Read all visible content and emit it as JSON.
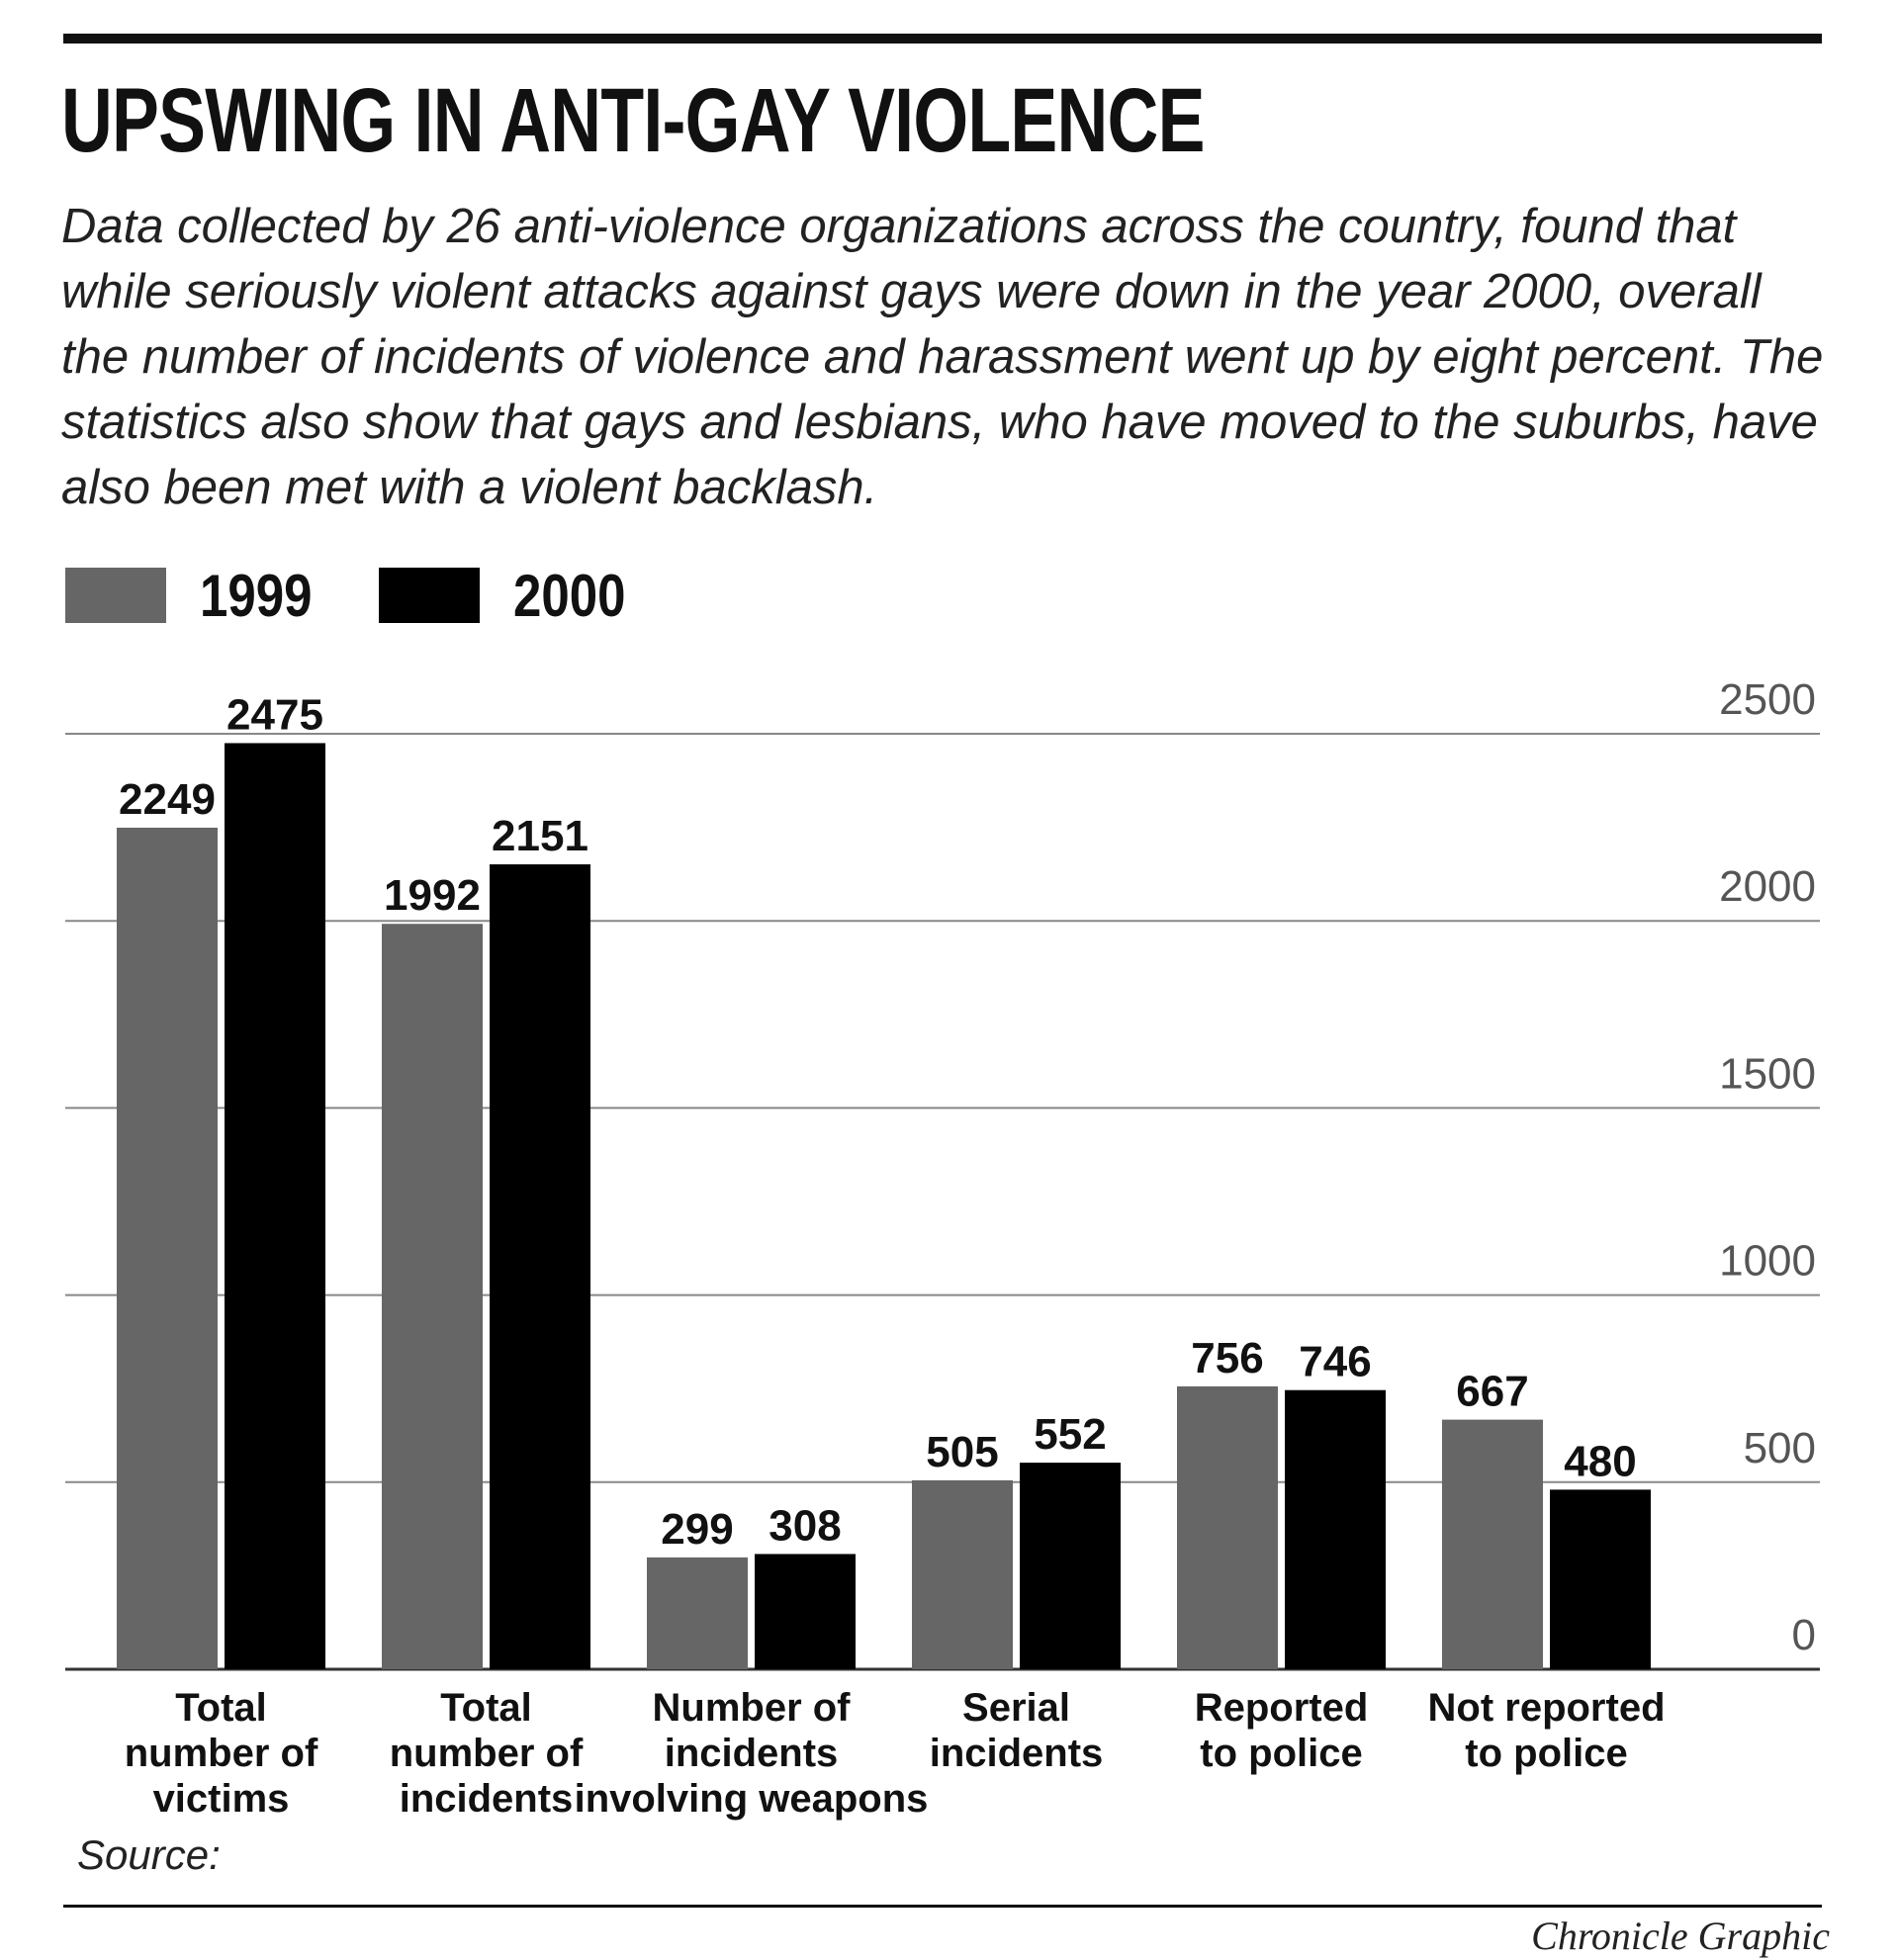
{
  "title": "UPSWING IN ANTI-GAY VIOLENCE",
  "subtitle": "Data collected by 26 anti-violence organizations across the country, found that while seriously violent attacks against gays were down in the year 2000, overall the number of incidents of violence and harassment went up by eight percent. The statistics also show that gays and lesbians, who have moved to the suburbs, have also been met with a violent backlash.",
  "source": "Source:",
  "credit": "Chronicle Graphic",
  "colors": {
    "series_1999": "#666666",
    "series_2000": "#000000",
    "gridline": "#888888",
    "tick": "#555555"
  },
  "chart_data": {
    "type": "bar",
    "title": "UPSWING IN ANTI-GAY VIOLENCE",
    "categories": [
      [
        "Total",
        "number of",
        "victims"
      ],
      [
        "Total",
        "number of",
        "incidents"
      ],
      [
        "Number of",
        "incidents",
        "involving weapons"
      ],
      [
        "Serial",
        "incidents"
      ],
      [
        "Reported",
        "to police"
      ],
      [
        "Not reported",
        "to police"
      ]
    ],
    "series": [
      {
        "name": "1999",
        "color": "#666666",
        "values": [
          2249,
          1992,
          299,
          505,
          756,
          667
        ]
      },
      {
        "name": "2000",
        "color": "#000000",
        "values": [
          2475,
          2151,
          308,
          552,
          746,
          480
        ]
      }
    ],
    "ylim": [
      0,
      2500
    ],
    "yticks": [
      0,
      500,
      1000,
      1500,
      2000,
      2500
    ],
    "grid": true,
    "legend": "top-left",
    "y_axis_side": "right"
  }
}
